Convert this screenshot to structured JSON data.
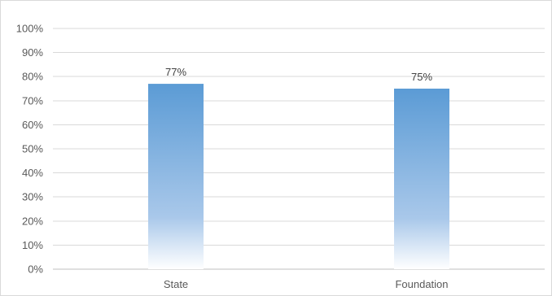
{
  "chart_data": {
    "type": "bar",
    "categories": [
      "State",
      "Foundation"
    ],
    "values": [
      77,
      75
    ],
    "data_labels": [
      "77%",
      "75%"
    ],
    "ylim": [
      0,
      100
    ],
    "y_ticks": [
      0,
      10,
      20,
      30,
      40,
      50,
      60,
      70,
      80,
      90,
      100
    ],
    "y_tick_labels": [
      "0%",
      "10%",
      "20%",
      "30%",
      "40%",
      "50%",
      "60%",
      "70%",
      "80%",
      "90%",
      "100%"
    ],
    "grid": true,
    "legend": "none",
    "title": "",
    "xlabel": "",
    "ylabel": "",
    "colors": {
      "bar_top": "#5b9bd5",
      "bar_bottom": "#ffffff",
      "grid": "#d9d9d9",
      "axis": "#bfbfbf"
    }
  }
}
